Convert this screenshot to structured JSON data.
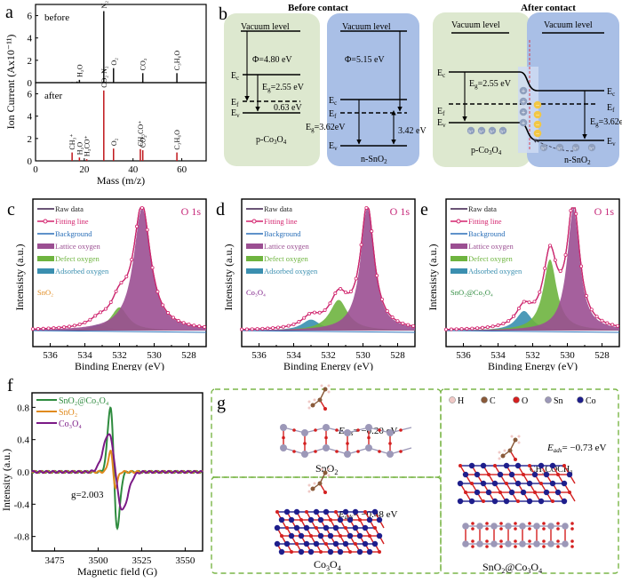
{
  "chart_data": [
    {
      "panel": "a",
      "type": "bar",
      "title": "",
      "xlabel": "Mass (m/z)",
      "ylabel": "Ion Current (Ax10⁻¹¹)",
      "xlim": [
        0,
        70
      ],
      "ylim": [
        0,
        7
      ],
      "xticks": [
        "0",
        "20",
        "40",
        "60"
      ],
      "yticks": [
        "0",
        "2",
        "4",
        "6"
      ],
      "subplots": [
        {
          "label": "before",
          "color": "#111111",
          "peaks": [
            {
              "x": 15,
              "y": 0.05,
              "name": ""
            },
            {
              "x": 17,
              "y": 0.1,
              "name": ""
            },
            {
              "x": 18,
              "y": 0.25,
              "name": "H₂O"
            },
            {
              "x": 28,
              "y": 6.4,
              "name": "N₂"
            },
            {
              "x": 32,
              "y": 1.3,
              "name": "O₂"
            },
            {
              "x": 44,
              "y": 0.85,
              "name": "CO₂"
            },
            {
              "x": 58,
              "y": 0.85,
              "name": "C₃H₆O"
            }
          ]
        },
        {
          "label": "after",
          "color": "#c0161b",
          "peaks": [
            {
              "x": 15,
              "y": 0.75,
              "name": "CH₃⁺"
            },
            {
              "x": 18,
              "y": 0.3,
              "name": "H₂O"
            },
            {
              "x": 21,
              "y": 0.15,
              "name": "H₃CO⁺"
            },
            {
              "x": 28,
              "y": 6.3,
              "name": "CO₂  N₂"
            },
            {
              "x": 32,
              "y": 1.1,
              "name": "O₂"
            },
            {
              "x": 43,
              "y": 1.05,
              "name": "CH₃CO⁺"
            },
            {
              "x": 44,
              "y": 0.95,
              "name": "CO₂"
            },
            {
              "x": 58,
              "y": 0.75,
              "name": "C₃H₆O"
            }
          ]
        }
      ]
    },
    {
      "panel": "c",
      "type": "area",
      "title": "O 1s",
      "sample": "SnO₂",
      "xlabel": "Binding Energy (eV)",
      "ylabel": "Intensisty (a.u.)",
      "xlim": [
        537,
        527
      ],
      "xticks": [
        "536",
        "534",
        "532",
        "530",
        "528"
      ],
      "components": [
        {
          "name": "Lattice oxygen",
          "center": 530.7,
          "height": 1.0,
          "width": 0.75,
          "color": "#9b4f92"
        },
        {
          "name": "Defect oxygen",
          "center": 532.0,
          "height": 0.19,
          "width": 0.75,
          "color": "#6eb43f"
        },
        {
          "name": "Adsorbed oxygen",
          "center": 533.2,
          "height": 0.05,
          "width": 0.8,
          "color": "#3a8fb0"
        }
      ]
    },
    {
      "panel": "d",
      "type": "area",
      "title": "O 1s",
      "sample": "Co₃O₄",
      "xlabel": "Binding Energy (eV)",
      "ylabel": "Intensisty (a.u.)",
      "xlim": [
        537,
        527
      ],
      "xticks": [
        "536",
        "534",
        "532",
        "530",
        "528"
      ],
      "components": [
        {
          "name": "Lattice oxygen",
          "center": 529.75,
          "height": 1.0,
          "width": 0.6,
          "color": "#9b4f92"
        },
        {
          "name": "Defect oxygen",
          "center": 531.4,
          "height": 0.25,
          "width": 0.8,
          "color": "#6eb43f"
        },
        {
          "name": "Adsorbed oxygen",
          "center": 533.0,
          "height": 0.09,
          "width": 0.8,
          "color": "#3a8fb0"
        }
      ]
    },
    {
      "panel": "e",
      "type": "area",
      "title": "O 1s",
      "sample": "SnO₂@Co₃O₄",
      "xlabel": "Binding Energy (eV)",
      "ylabel": "Intensisty (a.u.)",
      "xlim": [
        537,
        527
      ],
      "xticks": [
        "536",
        "534",
        "532",
        "530",
        "528"
      ],
      "components": [
        {
          "name": "Lattice oxygen",
          "center": 529.65,
          "height": 1.0,
          "width": 0.55,
          "color": "#9b4f92"
        },
        {
          "name": "Defect oxygen",
          "center": 531.0,
          "height": 0.58,
          "width": 0.6,
          "color": "#6eb43f"
        },
        {
          "name": "Adsorbed oxygen",
          "center": 532.5,
          "height": 0.16,
          "width": 0.7,
          "color": "#3a8fb0"
        }
      ]
    },
    {
      "panel": "f",
      "type": "line",
      "title": "",
      "xlabel": "Magnetic field (G)",
      "ylabel": "Intensity (a.u.)",
      "xlim": [
        3462,
        3560
      ],
      "ylim": [
        -0.98,
        0.98
      ],
      "xticks": [
        "3475",
        "3500",
        "3525",
        "3550"
      ],
      "yticks": [
        "0.8",
        "0.4",
        "0.0",
        "-0.4",
        "-0.8"
      ],
      "annotation": "g=2.003",
      "series": [
        {
          "name": "SnO₂@Co₃O₄",
          "color": "#2e8b3e",
          "peak_x": 3507,
          "peak_y": 0.82,
          "trough_x": 3511,
          "trough_y": -0.68
        },
        {
          "name": "SnO₂",
          "color": "#e08a1e",
          "peak_x": 3507,
          "peak_y": 0.27,
          "trough_x": 3510,
          "trough_y": -0.18
        },
        {
          "name": "Co₃O₄",
          "color": "#7b1a86",
          "peak_x": 3506,
          "peak_y": 0.47,
          "trough_x": 3514,
          "trough_y": -0.47
        }
      ]
    }
  ],
  "legend_xps": {
    "raw": "Raw data",
    "fit": "Fitting line",
    "bg": "Background",
    "lattice": "Lattice oxygen",
    "defect": "Defect oxygen",
    "adsorbed": "Adsorbed oxygen"
  },
  "panel_labels": {
    "a": "a",
    "b": "b",
    "c": "c",
    "d": "d",
    "e": "e",
    "f": "f",
    "g": "g"
  },
  "band_diagram": {
    "before_title": "Before contact",
    "after_title": "After contact",
    "vacuum": "Vacuum level",
    "phi_co": "Φ=4.80 eV",
    "phi_sn": "Φ=5.15 eV",
    "eg_co": "=2.55 eV",
    "eg_sn": "=3.62eV",
    "gap_co": "0.63 eV",
    "gap_sn": "3.42 eV",
    "p_co": "p-Co",
    "n_sn": "n-SnO",
    "ec": "E",
    "ef": "E",
    "ev": "E",
    "eg": "E",
    "sub_c": "c",
    "sub_f": "f",
    "sub_v": "v",
    "sub_g": "g",
    "hole": "h⁺",
    "plus": "+",
    "minus": "−",
    "colors": {
      "p_side": "#dde8cf",
      "n_side": "#a9bfe6",
      "electron": "#f2c744",
      "hole": "#8f9fbd"
    }
  },
  "dft": {
    "eads_snO2": "= −0.20 eV",
    "eads_co3o4": "= −0.48 eV",
    "eads_hetero": "= −0.73 eV",
    "eads_label": "E",
    "eads_sub": "ads",
    "name_sno2": "SnO",
    "name_co3o4": "Co",
    "name_hetero": "SnO",
    "molecule": "CH₃COCH₃",
    "legend": [
      {
        "el": "H",
        "color": "#f0c9c6"
      },
      {
        "el": "C",
        "color": "#8a5a3a"
      },
      {
        "el": "O",
        "color": "#d42020"
      },
      {
        "el": "Sn",
        "color": "#9c98b8"
      },
      {
        "el": "Co",
        "color": "#1e1e8c"
      }
    ]
  }
}
